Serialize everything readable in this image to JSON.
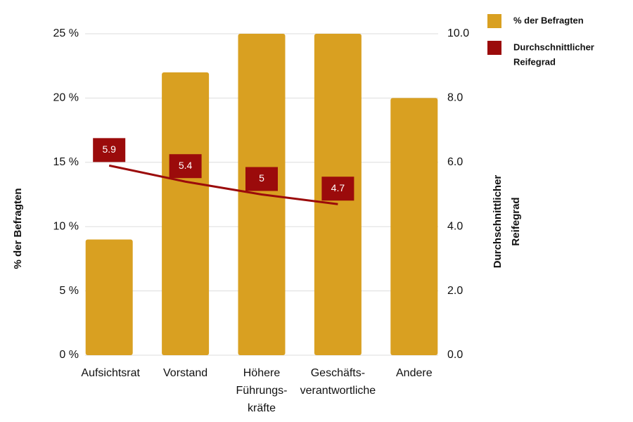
{
  "chart_data": {
    "type": "bar",
    "categories": [
      [
        "Aufsichtsrat"
      ],
      [
        "Vorstand"
      ],
      [
        "Höhere",
        "Führungs-",
        "kräfte"
      ],
      [
        "Geschäfts-",
        "verantwortliche"
      ],
      [
        "Andere"
      ]
    ],
    "ylabel": "% der Befragten",
    "y2label": [
      "Durchschnittlicher",
      "Reifegrad"
    ],
    "ylim": [
      0,
      25
    ],
    "yticks": [
      {
        "value": 0,
        "label": "0 %"
      },
      {
        "value": 5,
        "label": "5 %"
      },
      {
        "value": 10,
        "label": "10 %"
      },
      {
        "value": 15,
        "label": "15 %"
      },
      {
        "value": 20,
        "label": "20 %"
      },
      {
        "value": 25,
        "label": "25 %"
      }
    ],
    "y2lim": [
      0,
      10
    ],
    "y2ticks": [
      {
        "value": 0,
        "label": "0.0"
      },
      {
        "value": 2,
        "label": "2.0"
      },
      {
        "value": 4,
        "label": "4.0"
      },
      {
        "value": 6,
        "label": "6.0"
      },
      {
        "value": 8,
        "label": "8.0"
      },
      {
        "value": 10,
        "label": "10.0"
      }
    ],
    "grid": true,
    "legend": "top-right",
    "series": [
      {
        "name": [
          "% der Befragten"
        ],
        "type": "bar",
        "color": "#d9a021",
        "values": [
          9,
          22,
          25,
          25,
          20
        ]
      },
      {
        "name": [
          "Durchschnittlicher",
          "Reifegrad"
        ],
        "type": "line",
        "axis": "y2",
        "color": "#9b0b0b",
        "values": [
          5.9,
          5.4,
          5,
          4.7,
          null
        ]
      }
    ]
  }
}
